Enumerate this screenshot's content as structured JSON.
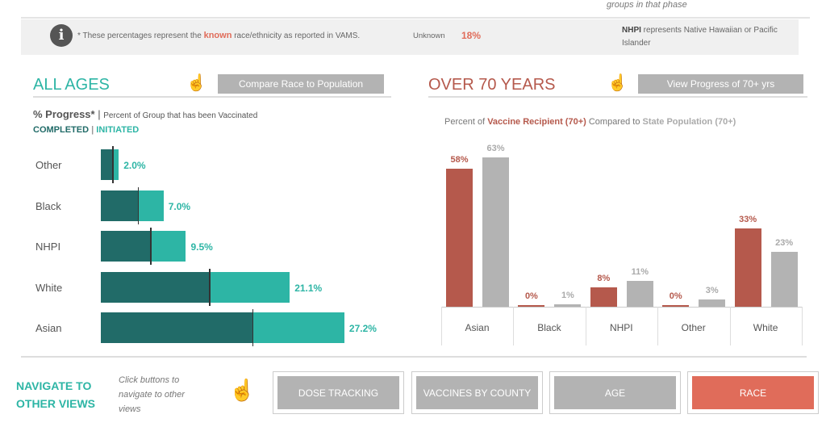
{
  "top_note": "groups in that phase",
  "info": {
    "prefix": "* These percentages represent the ",
    "known": "known",
    "suffix": " race/ethnicity as reported in VAMS.",
    "unknown_label": "Unknown",
    "unknown_value": "18%",
    "nhpi_bold": "NHPI",
    "nhpi_text": " represents Native Hawaiian or Pacific Islander"
  },
  "left": {
    "title": "ALL AGES",
    "button": "Compare Race to Population",
    "subtitle_bold": "% Progress*",
    "subtitle": "Percent of Group that has been Vaccinated",
    "legend_completed": "COMPLETED",
    "legend_initiated": "INITIATED"
  },
  "right": {
    "title": "OVER 70 YEARS",
    "button": "View Progress of 70+ yrs",
    "caption_a": "Percent of ",
    "caption_b": "Vaccine Recipient (70+)",
    "caption_c": " Compared to ",
    "caption_d": "State Population (70+)"
  },
  "colors": {
    "teal": "#2db5a5",
    "dark_teal": "#216b68",
    "red": "#b5594c",
    "gray": "#b3b3b3",
    "race_button": "#e06c5a"
  },
  "chart_data": [
    {
      "type": "bar",
      "orientation": "horizontal",
      "categories": [
        "Other",
        "Black",
        "NHPI",
        "White",
        "Asian"
      ],
      "series": [
        {
          "name": "COMPLETED",
          "values": [
            1.3,
            4.1,
            5.5,
            12.1,
            16.9
          ]
        },
        {
          "name": "INITIATED",
          "values": [
            2.0,
            7.0,
            9.5,
            21.1,
            27.2
          ]
        }
      ],
      "labels": [
        "2.0%",
        "7.0%",
        "9.5%",
        "21.1%",
        "27.2%"
      ]
    },
    {
      "type": "bar",
      "categories": [
        "Asian",
        "Black",
        "NHPI",
        "Other",
        "White"
      ],
      "series": [
        {
          "name": "Vaccine Recipient (70+)",
          "values": [
            58,
            0,
            8,
            0,
            33
          ],
          "labels": [
            "58%",
            "0%",
            "8%",
            "0%",
            "33%"
          ]
        },
        {
          "name": "State Population (70+)",
          "values": [
            63,
            1,
            11,
            3,
            23
          ],
          "labels": [
            "63%",
            "1%",
            "11%",
            "3%",
            "23%"
          ]
        }
      ]
    }
  ],
  "nav": {
    "title": "NAVIGATE TO OTHER VIEWS",
    "hint": "Click buttons to navigate to other views",
    "buttons": [
      "DOSE TRACKING",
      "VACCINES BY COUNTY",
      "AGE",
      "RACE"
    ]
  }
}
